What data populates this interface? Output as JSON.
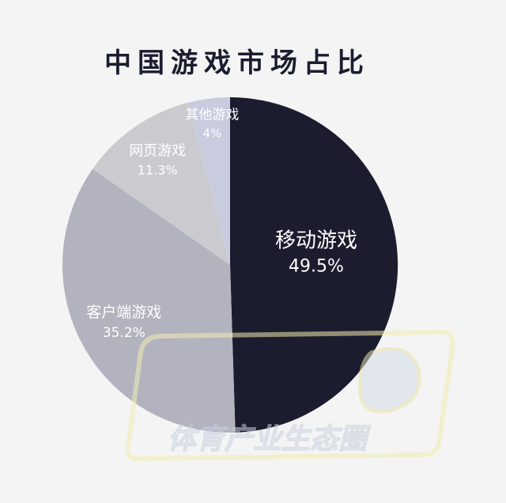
{
  "chart_data": {
    "type": "pie",
    "title": "中国游戏市场占比",
    "slices": [
      {
        "name": "移动游戏",
        "value": 49.5,
        "label": "49.5%",
        "color": "#1b1c2e",
        "text_color": "#ffffff"
      },
      {
        "name": "客户端游戏",
        "value": 35.2,
        "label": "35.2%",
        "color": "#b2b3be",
        "text_color": "#ffffff"
      },
      {
        "name": "网页游戏",
        "value": 11.3,
        "label": "11.3%",
        "color": "#cbcbcf",
        "text_color": "#ffffff"
      },
      {
        "name": "其他游戏",
        "value": 4,
        "label": "4%",
        "color": "#c9ccdf",
        "text_color": "#ffffff"
      }
    ],
    "start": "12 o'clock",
    "direction": "clockwise"
  },
  "watermark": {
    "text": "体育产业生态圈"
  }
}
